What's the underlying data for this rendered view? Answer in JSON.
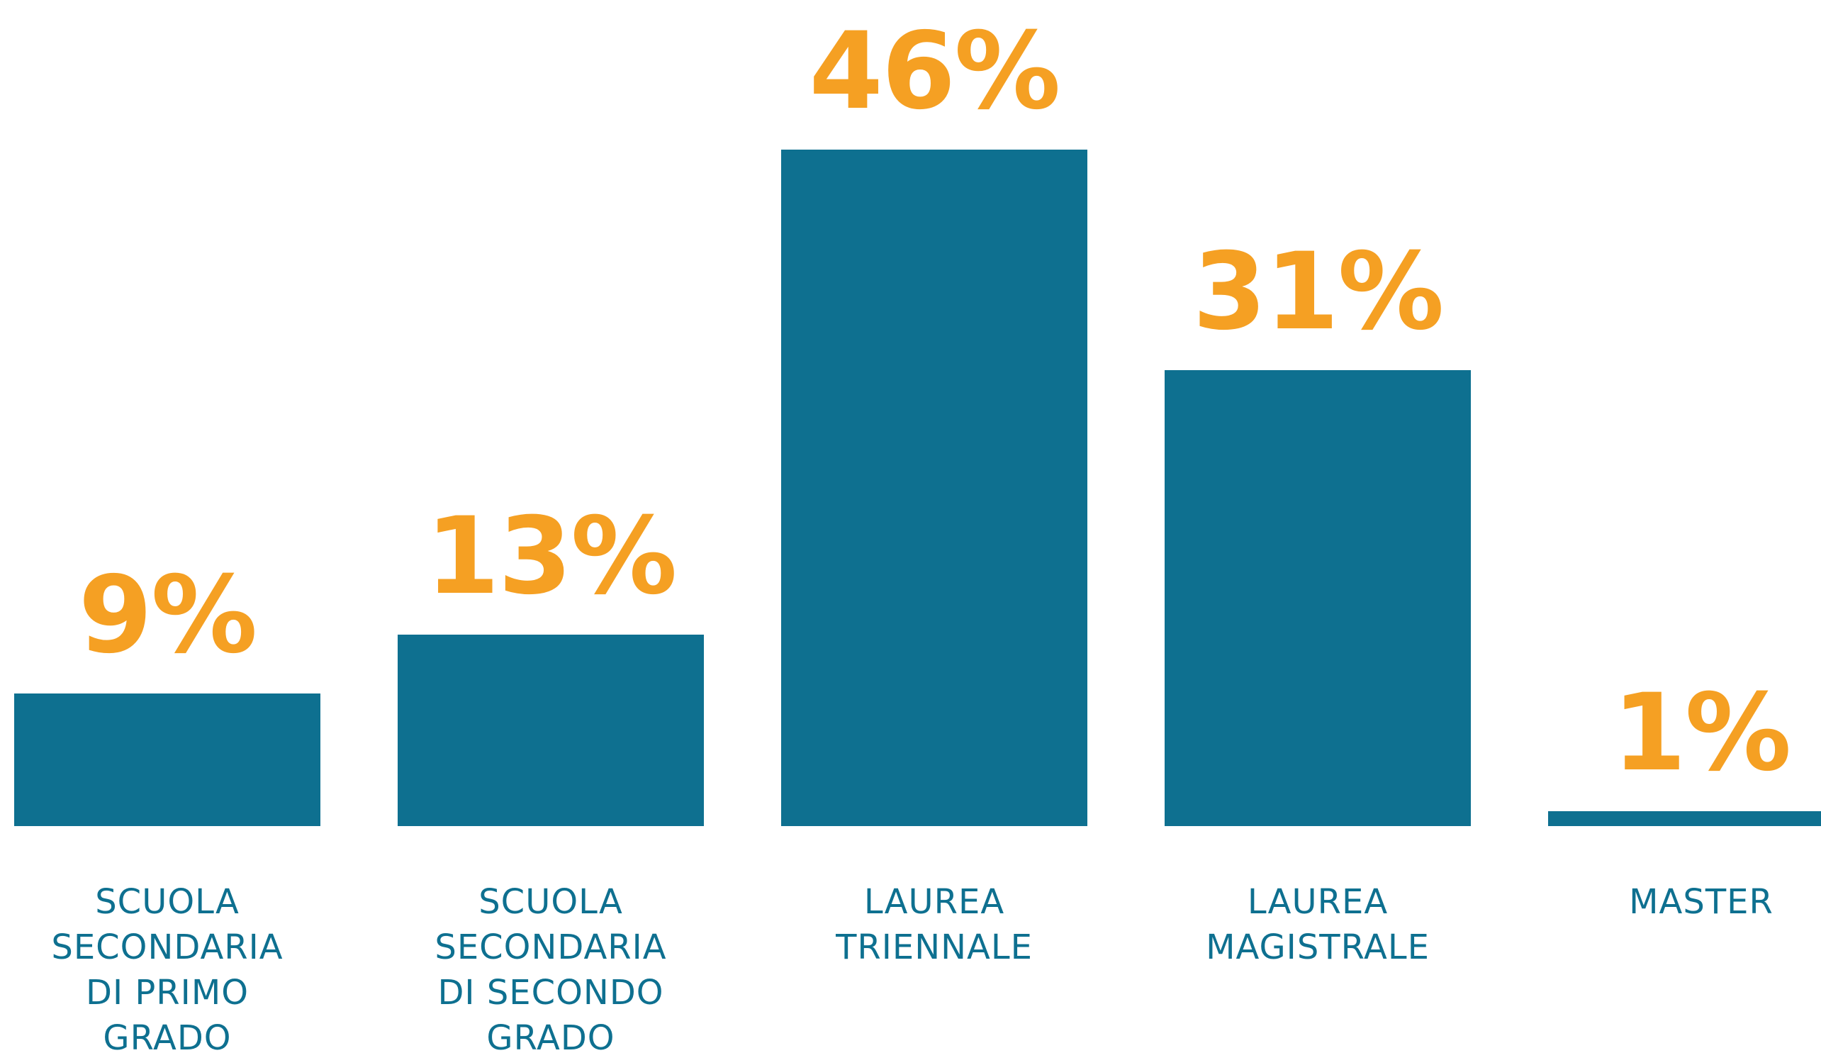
{
  "chart_data": {
    "type": "bar",
    "categories": [
      "SCUOLA\nSECONDARIA\nDI PRIMO\nGRADO",
      "SCUOLA\nSECONDARIA\nDI SECONDO\nGRADO",
      "LAUREA\nTRIENNALE",
      "LAUREA\nMAGISTRALE",
      "MASTER"
    ],
    "values": [
      9,
      13,
      46,
      31,
      1
    ],
    "value_labels": [
      "9%",
      "13%",
      "46%",
      "31%",
      "1%"
    ],
    "color": "#0e7090",
    "label_color": "#f5a023",
    "category_color": "#0e7090"
  }
}
